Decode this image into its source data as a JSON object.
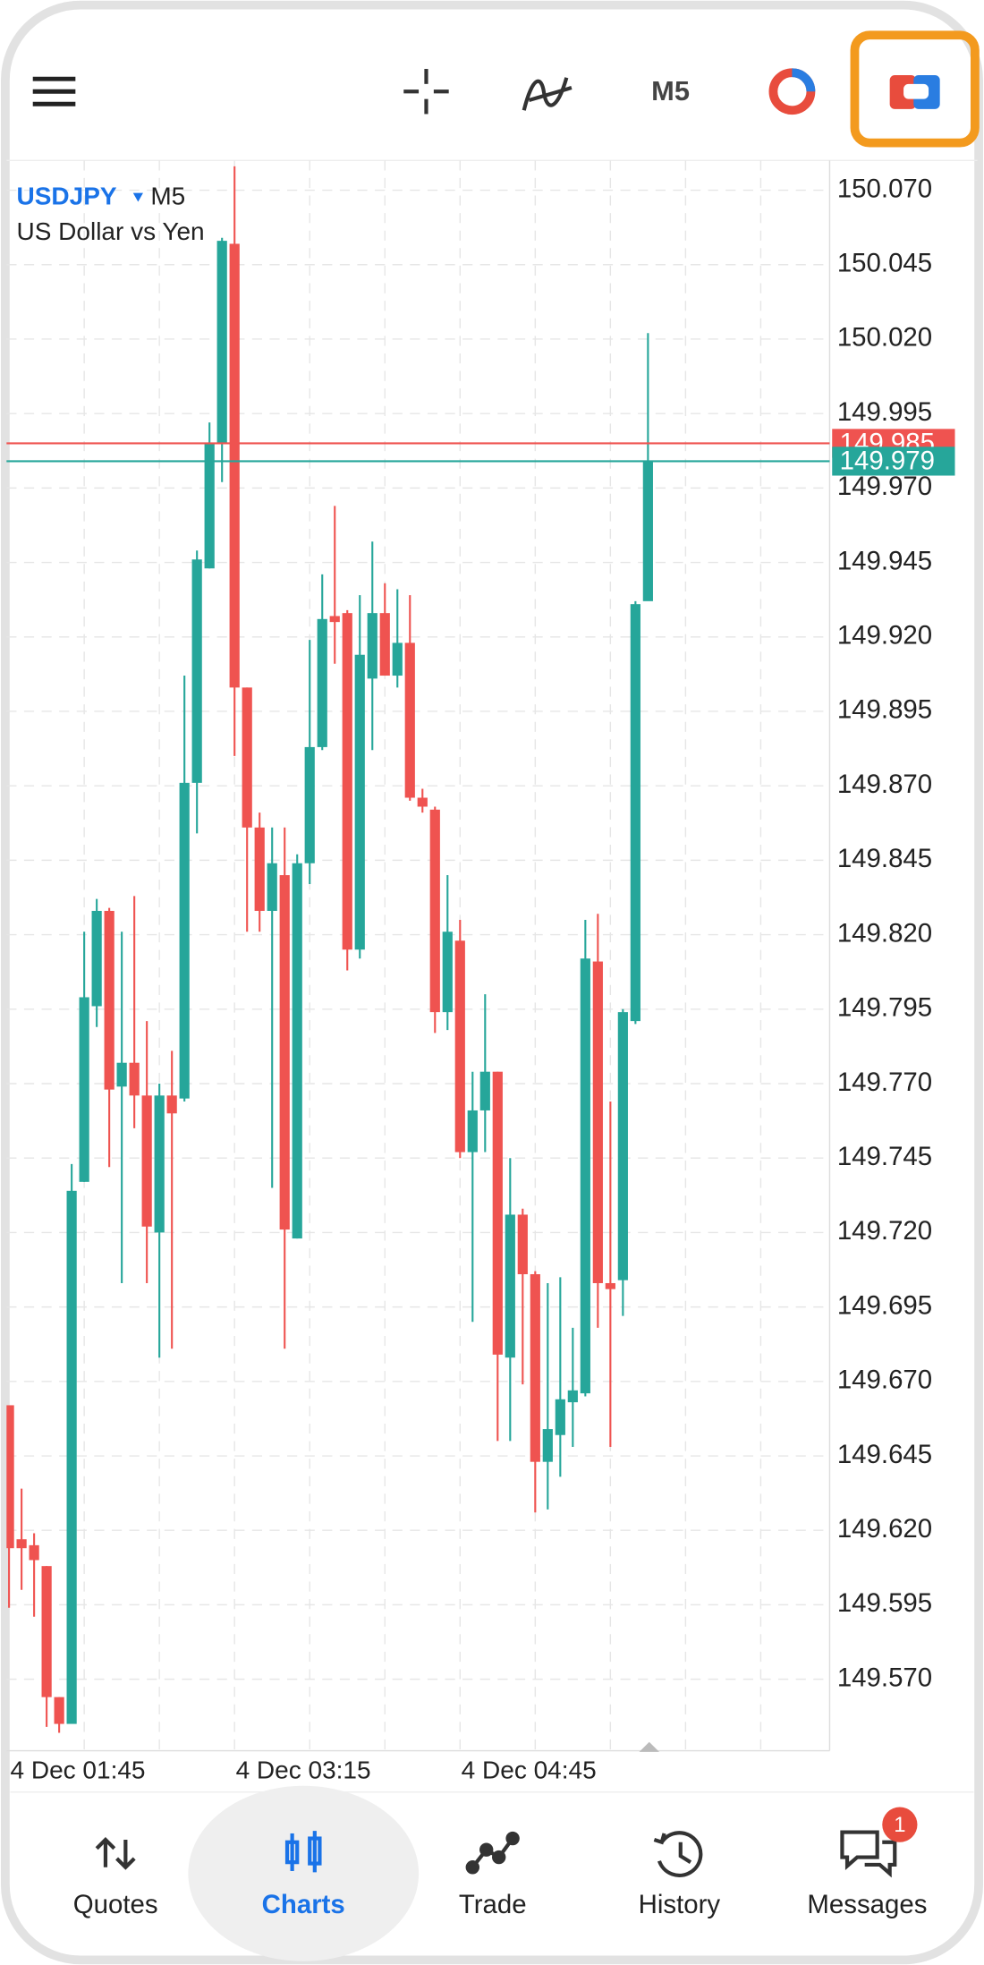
{
  "toolbar": {
    "timeframe": "M5"
  },
  "chart_data": {
    "type": "candlestick",
    "symbol": "USDJPY",
    "timeframe": "M5",
    "subtitle": "US Dollar vs Yen",
    "categories": [
      "4 Dec 01:45",
      null,
      null,
      null,
      null,
      null,
      null,
      null,
      null,
      null,
      null,
      null,
      null,
      null,
      null,
      null,
      null,
      null,
      "4 Dec 03:15",
      null,
      null,
      null,
      null,
      null,
      null,
      null,
      null,
      null,
      null,
      null,
      null,
      null,
      null,
      null,
      null,
      null,
      "4 Dec 04:45",
      null,
      null,
      null,
      null,
      null,
      null,
      null,
      null,
      null,
      null,
      null,
      null,
      null,
      null,
      null
    ],
    "open": [
      149.662,
      149.617,
      149.615,
      149.608,
      149.564,
      149.555,
      149.737,
      149.796,
      149.828,
      149.769,
      149.777,
      149.766,
      149.72,
      149.766,
      149.765,
      149.871,
      149.943,
      149.985,
      150.052,
      149.903,
      149.856,
      149.828,
      149.84,
      149.718,
      149.844,
      149.883,
      149.927,
      149.928,
      149.815,
      149.906,
      149.928,
      149.907,
      149.918,
      149.866,
      149.862,
      149.794,
      149.818,
      149.747,
      149.761,
      149.774,
      149.678,
      149.726,
      149.706,
      149.643,
      149.652,
      149.663,
      149.666,
      149.811,
      149.703,
      149.704,
      149.791,
      149.932
    ],
    "high": [
      149.662,
      149.634,
      149.619,
      149.608,
      149.564,
      149.743,
      149.821,
      149.832,
      149.829,
      149.821,
      149.833,
      149.791,
      149.77,
      149.781,
      149.907,
      149.949,
      149.992,
      150.054,
      150.078,
      149.903,
      149.861,
      149.856,
      149.856,
      149.847,
      149.919,
      149.941,
      149.964,
      149.929,
      149.934,
      149.952,
      149.938,
      149.936,
      149.934,
      149.869,
      149.863,
      149.84,
      149.825,
      149.774,
      149.8,
      149.774,
      149.745,
      149.728,
      149.707,
      149.703,
      149.705,
      149.688,
      149.825,
      149.827,
      149.764,
      149.795,
      149.932,
      150.022
    ],
    "low": [
      149.594,
      149.6,
      149.591,
      149.554,
      149.552,
      149.555,
      149.737,
      149.789,
      149.742,
      149.703,
      149.755,
      149.703,
      149.678,
      149.681,
      149.764,
      149.854,
      149.943,
      149.972,
      149.88,
      149.821,
      149.821,
      149.735,
      149.681,
      149.718,
      149.837,
      149.882,
      149.911,
      149.808,
      149.812,
      149.882,
      149.907,
      149.903,
      149.865,
      149.861,
      149.787,
      149.788,
      149.745,
      149.69,
      149.747,
      149.65,
      149.65,
      149.669,
      149.626,
      149.627,
      149.638,
      149.648,
      149.665,
      149.688,
      149.648,
      149.692,
      149.79,
      149.933
    ],
    "close": [
      149.614,
      149.614,
      149.61,
      149.564,
      149.555,
      149.734,
      149.799,
      149.828,
      149.768,
      149.777,
      149.766,
      149.722,
      149.766,
      149.76,
      149.871,
      149.946,
      149.985,
      150.053,
      149.903,
      149.856,
      149.828,
      149.844,
      149.721,
      149.844,
      149.883,
      149.926,
      149.925,
      149.815,
      149.914,
      149.928,
      149.907,
      149.918,
      149.866,
      149.863,
      149.794,
      149.821,
      149.747,
      149.761,
      149.774,
      149.679,
      149.726,
      149.706,
      149.643,
      149.654,
      149.664,
      149.667,
      149.812,
      149.703,
      149.701,
      149.794,
      149.931,
      149.979
    ],
    "up_color": "#26a69a",
    "down_color": "#ef5350",
    "ylim": [
      149.546,
      150.08
    ],
    "yticks": [
      {
        "value": 150.07,
        "label": "150.070"
      },
      150.045,
      {
        "value": 150.02,
        "label": "150.020"
      },
      149.995,
      {
        "value": 149.97,
        "label": "149.970"
      },
      149.945,
      {
        "value": 149.92,
        "label": "149.920"
      },
      149.895,
      {
        "value": 149.87,
        "label": "149.870"
      },
      149.845,
      {
        "value": 149.82,
        "label": "149.820"
      },
      149.795,
      {
        "value": 149.77,
        "label": "149.770"
      },
      149.745,
      {
        "value": 149.72,
        "label": "149.720"
      },
      149.695,
      {
        "value": 149.67,
        "label": "149.670"
      },
      149.645,
      {
        "value": 149.62,
        "label": "149.620"
      },
      149.595,
      {
        "value": 149.57,
        "label": "149.570"
      }
    ],
    "grid": true,
    "price_lines": [
      {
        "value": 149.985,
        "color": "#ef5350"
      },
      {
        "value": 149.979,
        "color": "#26a69a"
      }
    ]
  },
  "nav": {
    "items": [
      "Quotes",
      "Charts",
      "Trade",
      "History",
      "Messages"
    ],
    "active": 1,
    "badge": 1
  }
}
